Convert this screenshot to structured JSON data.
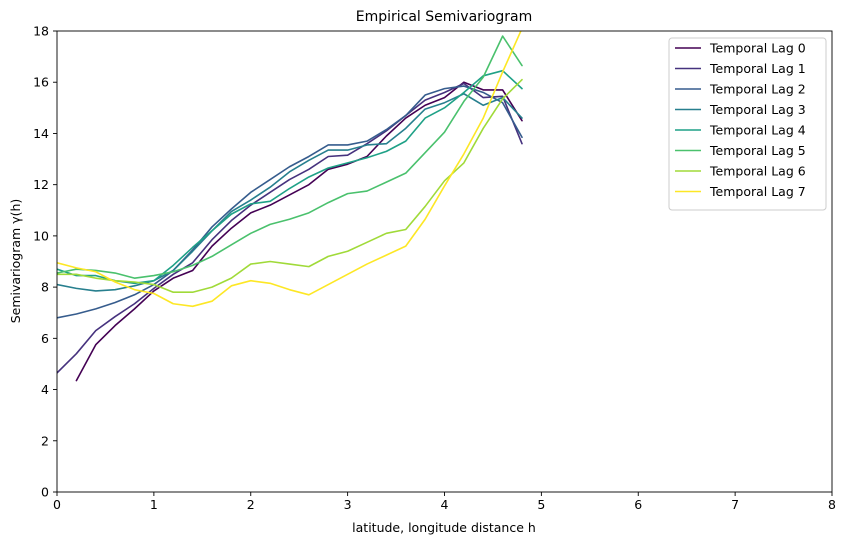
{
  "chart_data": {
    "type": "line",
    "title": "Empirical Semivariogram",
    "xlabel": "latitude, longitude distance h",
    "ylabel": "Semivariogram γ(h)",
    "xlim": [
      0,
      8
    ],
    "ylim": [
      0,
      18
    ],
    "xticks": [
      "0",
      "1",
      "2",
      "3",
      "4",
      "5",
      "6",
      "7",
      "8"
    ],
    "yticks": [
      "0",
      "2",
      "4",
      "6",
      "8",
      "10",
      "12",
      "14",
      "16",
      "18"
    ],
    "grid": false,
    "legend_position": "upper right",
    "x": [
      0.2,
      0.4,
      0.6,
      0.8,
      1.0,
      1.2,
      1.4,
      1.6,
      1.8,
      2.0,
      2.2,
      2.4,
      2.6,
      2.8,
      3.0,
      3.2,
      3.4,
      3.6,
      3.8,
      4.0,
      4.2,
      4.4,
      4.6,
      4.8
    ],
    "series": [
      {
        "name": "Temporal Lag 0",
        "color": "#440154",
        "x": [
          0.2,
          0.4,
          0.6,
          0.8,
          1.0,
          1.2,
          1.4,
          1.6,
          1.8,
          2.0,
          2.2,
          2.4,
          2.6,
          2.8,
          3.0,
          3.2,
          3.4,
          3.6,
          3.8,
          4.0,
          4.2,
          4.4,
          4.6,
          4.8
        ],
        "values": [
          4.35,
          5.75,
          6.5,
          7.15,
          7.85,
          8.35,
          8.65,
          9.6,
          10.3,
          10.9,
          11.2,
          11.6,
          12.0,
          12.6,
          12.8,
          13.1,
          13.9,
          14.6,
          15.1,
          15.4,
          16.0,
          15.7,
          15.7,
          14.5
        ]
      },
      {
        "name": "Temporal Lag 1",
        "color": "#46327e",
        "x": [
          0.0,
          0.2,
          0.4,
          0.6,
          0.8,
          1.0,
          1.2,
          1.4,
          1.6,
          1.8,
          2.0,
          2.2,
          2.4,
          2.6,
          2.8,
          3.0,
          3.2,
          3.4,
          3.6,
          3.8,
          4.0,
          4.2,
          4.4,
          4.6,
          4.8
        ],
        "values": [
          4.65,
          5.4,
          6.3,
          6.85,
          7.35,
          7.95,
          8.5,
          8.95,
          9.85,
          10.6,
          11.2,
          11.7,
          12.2,
          12.6,
          13.1,
          13.15,
          13.6,
          14.1,
          14.7,
          15.3,
          15.6,
          15.95,
          15.4,
          15.45,
          13.6
        ]
      },
      {
        "name": "Temporal Lag 2",
        "color": "#365c8d",
        "x": [
          0.0,
          0.2,
          0.4,
          0.6,
          0.8,
          1.0,
          1.2,
          1.4,
          1.6,
          1.8,
          2.0,
          2.2,
          2.4,
          2.6,
          2.8,
          3.0,
          3.2,
          3.4,
          3.6,
          3.8,
          4.0,
          4.2,
          4.4,
          4.6,
          4.8
        ],
        "values": [
          6.8,
          6.95,
          7.15,
          7.4,
          7.7,
          8.1,
          8.65,
          9.45,
          10.35,
          11.05,
          11.7,
          12.2,
          12.7,
          13.1,
          13.55,
          13.55,
          13.7,
          14.15,
          14.7,
          15.5,
          15.75,
          15.85,
          15.6,
          15.2,
          13.85
        ]
      },
      {
        "name": "Temporal Lag 3",
        "color": "#277f8e",
        "x": [
          0.0,
          0.2,
          0.4,
          0.6,
          0.8,
          1.0,
          1.2,
          1.4,
          1.6,
          1.8,
          2.0,
          2.2,
          2.4,
          2.6,
          2.8,
          3.0,
          3.2,
          3.4,
          3.6,
          3.8,
          4.0,
          4.2,
          4.4,
          4.6,
          4.8
        ],
        "values": [
          8.1,
          7.95,
          7.85,
          7.9,
          8.05,
          8.25,
          8.65,
          9.4,
          10.2,
          10.95,
          11.4,
          11.9,
          12.5,
          12.95,
          13.35,
          13.35,
          13.55,
          13.6,
          14.2,
          14.95,
          15.2,
          15.55,
          15.1,
          15.4,
          14.6
        ]
      },
      {
        "name": "Temporal Lag 4",
        "color": "#1fa187",
        "x": [
          0.0,
          0.2,
          0.4,
          0.6,
          0.8,
          1.0,
          1.2,
          1.4,
          1.6,
          1.8,
          2.0,
          2.2,
          2.4,
          2.6,
          2.8,
          3.0,
          3.2,
          3.4,
          3.6,
          3.8,
          4.0,
          4.2,
          4.4,
          4.6,
          4.8
        ],
        "values": [
          8.7,
          8.45,
          8.45,
          8.25,
          8.15,
          8.25,
          8.85,
          9.55,
          10.2,
          10.85,
          11.25,
          11.35,
          11.85,
          12.3,
          12.65,
          12.85,
          13.05,
          13.3,
          13.7,
          14.6,
          15.0,
          15.6,
          16.25,
          16.45,
          15.75
        ]
      },
      {
        "name": "Temporal Lag 5",
        "color": "#4ac16d",
        "x": [
          0.0,
          0.2,
          0.4,
          0.6,
          0.8,
          1.0,
          1.2,
          1.4,
          1.6,
          1.8,
          2.0,
          2.2,
          2.4,
          2.6,
          2.8,
          3.0,
          3.2,
          3.4,
          3.6,
          3.8,
          4.0,
          4.2,
          4.4,
          4.6,
          4.8
        ],
        "values": [
          8.55,
          8.7,
          8.65,
          8.55,
          8.35,
          8.45,
          8.6,
          8.85,
          9.2,
          9.65,
          10.1,
          10.45,
          10.65,
          10.9,
          11.3,
          11.65,
          11.75,
          12.1,
          12.45,
          13.25,
          14.05,
          15.25,
          16.2,
          17.8,
          16.65
        ]
      },
      {
        "name": "Temporal Lag 6",
        "color": "#a0da39",
        "x": [
          0.0,
          0.2,
          0.4,
          0.6,
          0.8,
          1.0,
          1.2,
          1.4,
          1.6,
          1.8,
          2.0,
          2.2,
          2.4,
          2.6,
          2.8,
          3.0,
          3.2,
          3.4,
          3.6,
          3.8,
          4.0,
          4.2,
          4.4,
          4.6,
          4.8
        ],
        "values": [
          8.5,
          8.5,
          8.35,
          8.25,
          8.2,
          8.1,
          7.8,
          7.8,
          8.0,
          8.35,
          8.9,
          9.0,
          8.9,
          8.8,
          9.2,
          9.4,
          9.75,
          10.1,
          10.25,
          11.15,
          12.15,
          12.85,
          14.2,
          15.35,
          16.1
        ]
      },
      {
        "name": "Temporal Lag 7",
        "color": "#fde725",
        "x": [
          0.0,
          0.2,
          0.4,
          0.6,
          0.8,
          1.0,
          1.2,
          1.4,
          1.6,
          1.8,
          2.0,
          2.2,
          2.4,
          2.6,
          2.8,
          3.0,
          3.2,
          3.4,
          3.6,
          3.8,
          4.0,
          4.2,
          4.4,
          4.6,
          4.8
        ],
        "values": [
          8.95,
          8.75,
          8.6,
          8.2,
          7.9,
          7.75,
          7.35,
          7.25,
          7.45,
          8.05,
          8.25,
          8.15,
          7.9,
          7.7,
          8.1,
          8.5,
          8.9,
          9.25,
          9.6,
          10.65,
          11.95,
          13.2,
          14.6,
          16.4,
          18.1
        ]
      }
    ]
  }
}
